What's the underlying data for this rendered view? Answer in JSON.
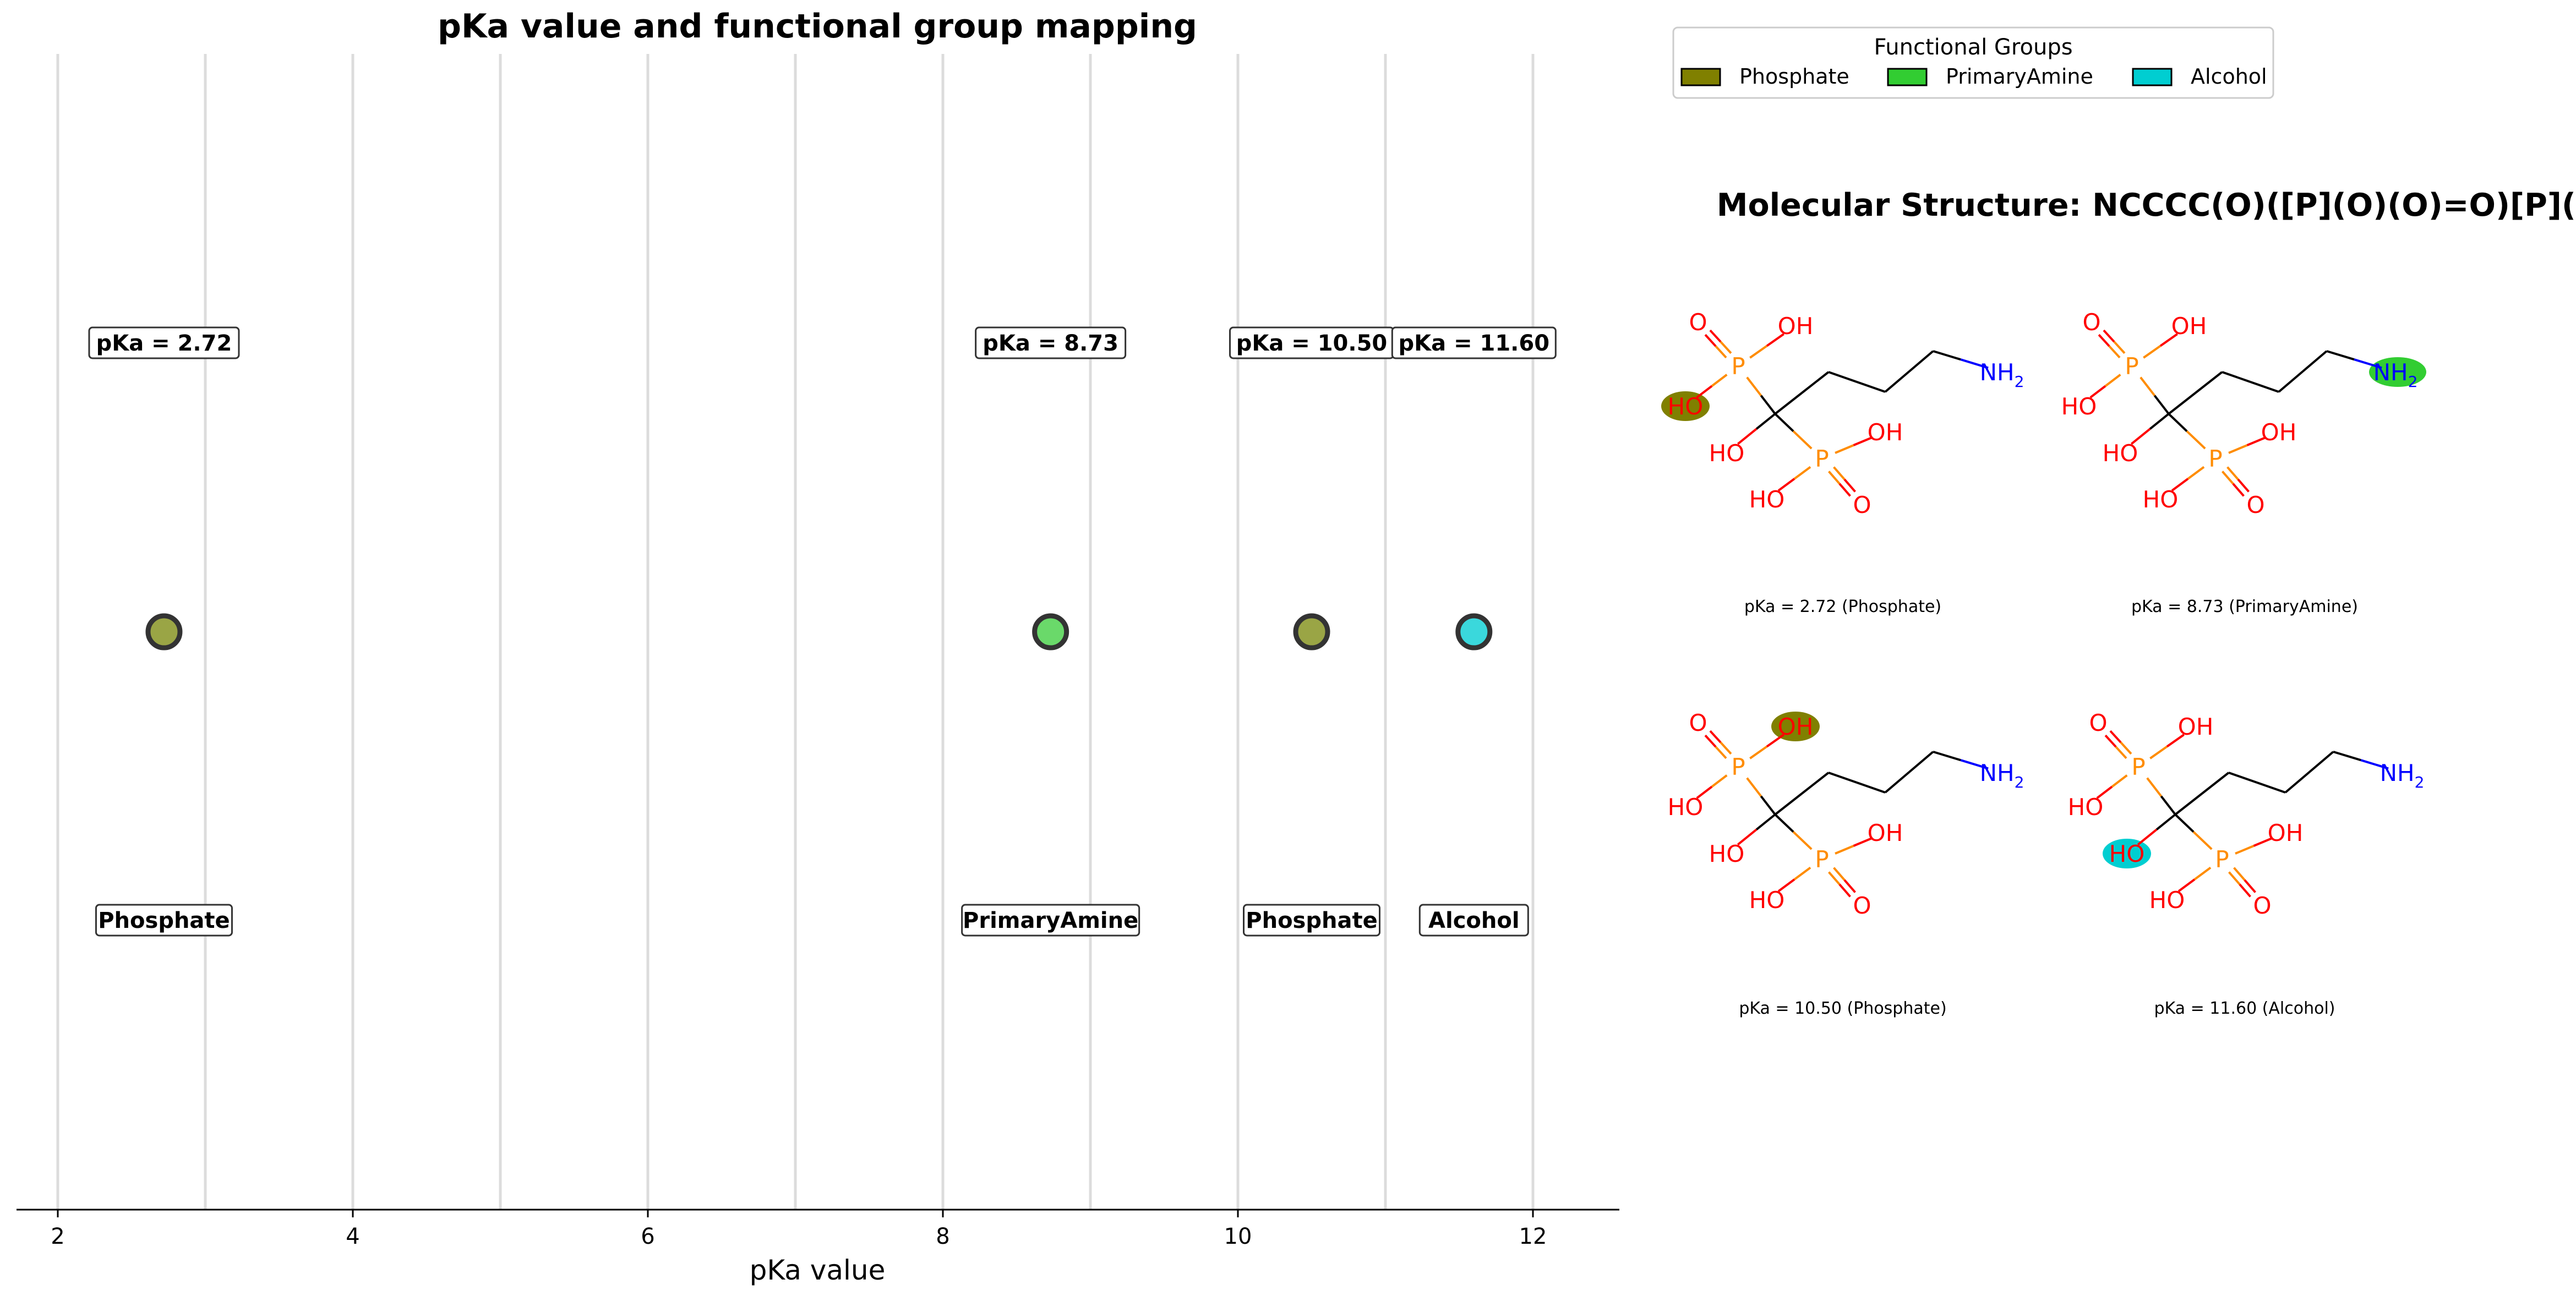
{
  "chart_data": {
    "type": "scatter",
    "title": "pKa value and functional group mapping",
    "xlabel": "pKa value",
    "xlim": [
      1.7,
      12.6
    ],
    "grid": "vertical",
    "xticks": [
      2,
      4,
      6,
      8,
      10,
      12
    ],
    "xtick_labels": [
      "2",
      "4",
      "6",
      "8",
      "10",
      "12"
    ],
    "points": [
      {
        "x": 2.72,
        "group": "Phosphate",
        "value_label": "pKa = 2.72",
        "group_label": "Phosphate"
      },
      {
        "x": 8.73,
        "group": "PrimaryAmine",
        "value_label": "pKa = 8.73",
        "group_label": "PrimaryAmine"
      },
      {
        "x": 10.5,
        "group": "Phosphate",
        "value_label": "pKa = 10.50",
        "group_label": "Phosphate"
      },
      {
        "x": 11.6,
        "group": "Alcohol",
        "value_label": "pKa = 11.60",
        "group_label": "Alcohol"
      }
    ]
  },
  "legend": {
    "title": "Functional Groups",
    "entries": [
      {
        "label": "Phosphate",
        "color": "#808000"
      },
      {
        "label": "PrimaryAmine",
        "color": "#32cd32"
      },
      {
        "label": "Alcohol",
        "color": "#00ced1"
      }
    ]
  },
  "colors": {
    "Phosphate_point": "#9aa545",
    "PrimaryAmine_point": "#6ad96a",
    "Alcohol_point": "#3ad8dc"
  },
  "molecule": {
    "title": "Molecular Structure: NCCCC(O)([P](O)(O)=O)[P](O)(O)=O",
    "atom_labels": {
      "oxygen": "O",
      "hydroxyl": "OH",
      "hydroxyl_left": "HO",
      "phosphorus": "P",
      "amine": "NH",
      "amine_sub": "2"
    },
    "panels": [
      {
        "caption": "pKa = 2.72 (Phosphate)",
        "highlight_atom": "P1_HO_left",
        "highlight_color": "#808000"
      },
      {
        "caption": "pKa = 8.73 (PrimaryAmine)",
        "highlight_atom": "NH2",
        "highlight_color": "#32cd32"
      },
      {
        "caption": "pKa = 10.50 (Phosphate)",
        "highlight_atom": "P1_OH_top",
        "highlight_color": "#808000"
      },
      {
        "caption": "pKa = 11.60 (Alcohol)",
        "highlight_atom": "C_OH",
        "highlight_color": "#00ced1"
      }
    ]
  }
}
